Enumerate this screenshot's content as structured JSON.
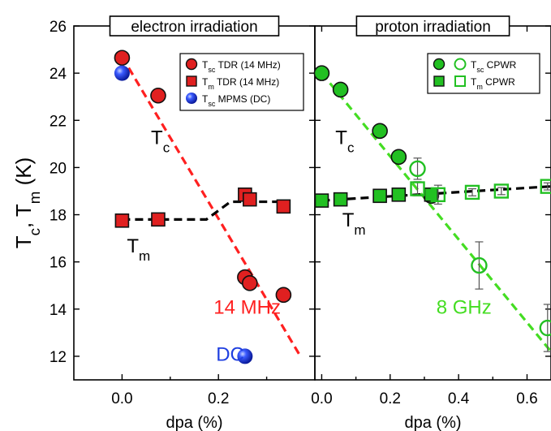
{
  "chart_data": [
    {
      "type": "scatter",
      "title": "electron irradiation",
      "xlabel": "dpa (%)",
      "ylabel": "T_c, T_m (K)",
      "ylabel_parts": {
        "t1": "T",
        "s1": "c",
        "sep": ", T",
        "s2": "m",
        "unit": " (K)"
      },
      "xlim": [
        -0.1,
        0.4
      ],
      "ylim": [
        11,
        26
      ],
      "xticks": [
        0.0,
        0.2
      ],
      "xtick_labels": [
        "0.0",
        "0.2"
      ],
      "yticks": [
        12,
        14,
        16,
        18,
        20,
        22,
        24,
        26
      ],
      "legend": [
        {
          "pre": "T",
          "sub": "sc",
          "post": " TDR (14 MHz)",
          "marker": "circle",
          "color": "#e02020",
          "filled": true
        },
        {
          "pre": "T",
          "sub": "m",
          "post": " TDR (14 MHz)",
          "marker": "square",
          "color": "#e02020",
          "filled": true
        },
        {
          "pre": "T",
          "sub": "sc",
          "post": " MPMS (DC)",
          "marker": "sphere",
          "color": "#1f3fe0",
          "filled": true
        }
      ],
      "legend_position": "top-right",
      "series": [
        {
          "label": "Tsc TDR (14 MHz)",
          "marker": "circle",
          "color": "#e02020",
          "x": [
            0.0,
            0.075,
            0.255,
            0.265,
            0.335
          ],
          "y": [
            24.65,
            23.05,
            15.35,
            15.1,
            14.6
          ]
        },
        {
          "label": "Tm TDR (14 MHz)",
          "marker": "square",
          "color": "#e02020",
          "x": [
            0.0,
            0.075,
            0.255,
            0.265,
            0.335
          ],
          "y": [
            17.75,
            17.8,
            18.85,
            18.65,
            18.35
          ]
        },
        {
          "label": "Tsc MPMS (DC)",
          "marker": "sphere",
          "color": "#1f3fe0",
          "x": [
            0.0,
            0.255
          ],
          "y": [
            24.0,
            12.0
          ]
        }
      ],
      "fit_lines": [
        {
          "color": "#ff2020",
          "x": [
            0.0,
            0.37
          ],
          "y": [
            24.7,
            12.0
          ]
        },
        {
          "color": "#000000",
          "x": [
            0.0,
            0.175,
            0.225,
            0.34
          ],
          "y": [
            17.8,
            17.8,
            18.55,
            18.55
          ]
        }
      ],
      "annotations": [
        {
          "t": "T",
          "sub": "c",
          "x": 0.06,
          "y": 21.0,
          "color": "#000000"
        },
        {
          "t": "T",
          "sub": "m",
          "x": 0.01,
          "y": 16.4,
          "color": "#000000"
        },
        {
          "t": "14 MHz",
          "sub": "",
          "x": 0.19,
          "y": 13.8,
          "color": "#ff2020"
        },
        {
          "t": "DC",
          "sub": "",
          "x": 0.195,
          "y": 11.8,
          "color": "#1f3fe0"
        }
      ]
    },
    {
      "type": "scatter",
      "title": "proton irradiation",
      "xlabel": "dpa (%)",
      "xlim": [
        -0.02,
        0.67
      ],
      "ylim": [
        11,
        26
      ],
      "xticks": [
        0.0,
        0.2,
        0.4,
        0.6
      ],
      "xtick_labels": [
        "0.0",
        "0.2",
        "0.4",
        "0.6"
      ],
      "yticks": [
        12,
        14,
        16,
        18,
        20,
        22,
        24,
        26
      ],
      "legend": [
        {
          "pre": "T",
          "sub": "sc",
          "post": " CPWR",
          "marker": "circle",
          "color": "#22c022",
          "filled": true,
          "open": true
        },
        {
          "pre": "T",
          "sub": "m",
          "post": " CPWR",
          "marker": "square",
          "color": "#22c022",
          "filled": true,
          "open": true
        }
      ],
      "legend_position": "top-right",
      "series": [
        {
          "label": "Tsc CPWR",
          "marker": "circle",
          "filled": true,
          "color": "#22c022",
          "x": [
            0.0,
            0.055,
            0.17,
            0.225,
            0.32
          ],
          "y": [
            24.0,
            23.3,
            21.55,
            20.45,
            18.8
          ],
          "err": [
            0.15,
            0.15,
            0.15,
            0.15,
            0.15
          ]
        },
        {
          "label": "Tsc CPWR (open)",
          "marker": "circle",
          "filled": false,
          "color": "#22c022",
          "x": [
            0.28,
            0.46,
            0.66
          ],
          "y": [
            19.95,
            15.85,
            13.2
          ],
          "err": [
            0.45,
            1.0,
            1.0
          ]
        },
        {
          "label": "Tm CPWR",
          "marker": "square",
          "filled": true,
          "color": "#22c022",
          "x": [
            0.0,
            0.055,
            0.17,
            0.225,
            0.32
          ],
          "y": [
            18.6,
            18.65,
            18.8,
            18.85,
            18.85
          ]
        },
        {
          "label": "Tm CPWR (open)",
          "marker": "square",
          "filled": false,
          "color": "#22c022",
          "x": [
            0.28,
            0.34,
            0.44,
            0.525,
            0.66
          ],
          "y": [
            19.1,
            18.85,
            18.95,
            19.0,
            19.2
          ],
          "err": [
            0.3,
            0.4,
            0.15,
            0.15,
            0.15
          ]
        }
      ],
      "fit_lines": [
        {
          "color": "#44dd22",
          "x": [
            0.0,
            0.67
          ],
          "y": [
            24.0,
            12.2
          ]
        },
        {
          "color": "#000000",
          "x": [
            0.0,
            0.67
          ],
          "y": [
            18.6,
            19.2
          ]
        }
      ],
      "annotations": [
        {
          "t": "T",
          "sub": "c",
          "x": 0.04,
          "y": 21.0,
          "color": "#000000"
        },
        {
          "t": "T",
          "sub": "m",
          "x": 0.06,
          "y": 17.5,
          "color": "#000000"
        },
        {
          "t": "8 GHz",
          "sub": "",
          "x": 0.335,
          "y": 13.8,
          "color": "#44dd22"
        }
      ]
    }
  ]
}
